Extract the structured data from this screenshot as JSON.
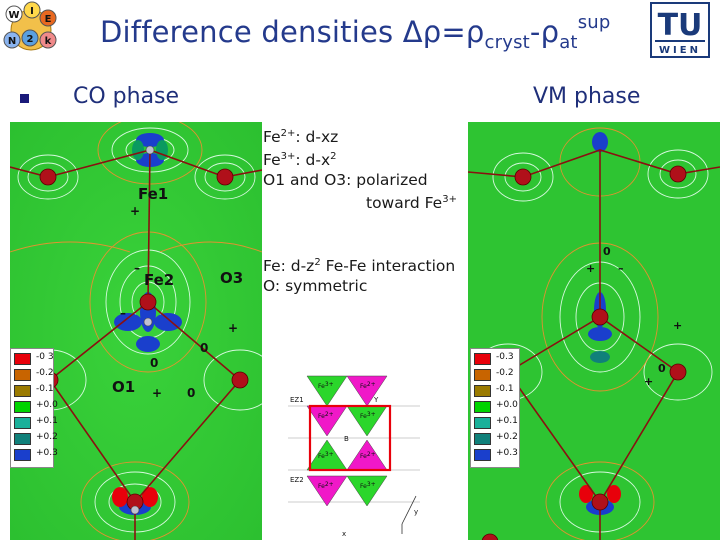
{
  "header": {
    "title_prefix": "Difference densities Δρ=ρ",
    "title_sub1": "cryst",
    "title_mid": "-ρ",
    "title_sub2": "at",
    "title_sup": "sup"
  },
  "logos": {
    "wien2k_letters": [
      "W",
      "I",
      "E",
      "N",
      "2",
      "k"
    ],
    "tu_wien_top": "TU",
    "tu_wien_bottom": "WIEN"
  },
  "sections": {
    "co_phase_label": "CO phase",
    "vm_phase_label": "VM phase"
  },
  "notes_block1": {
    "line1_fe": "Fe",
    "line1_sup": "2+",
    "line1_rest": ": d-xz",
    "line2_fe": "Fe",
    "line2_sup": "3+",
    "line2_rest": ": d-x",
    "line2_sup2": "2",
    "line3": "O1 and O3: polarized",
    "line4": "toward Fe",
    "line4_sup": "3+"
  },
  "notes_block2": {
    "line1_a": "Fe: d-z",
    "line1_sup": "2",
    "line1_b": " Fe-Fe interaction",
    "line2": "O: symmetric"
  },
  "co_map": {
    "site_labels": [
      "Fe1",
      "Fe2",
      "O3",
      "O1"
    ],
    "signs": [
      "+",
      "–",
      "–",
      "0",
      "0",
      "+",
      "0",
      "+"
    ]
  },
  "legend": {
    "colors": [
      "#e8000b",
      "#c86400",
      "#9a7a00",
      "#00d400",
      "#1ab09a",
      "#10807a",
      "#1a3fcc"
    ],
    "co_values": [
      "-0.3",
      "-0.2",
      "-0.1",
      "+0.0",
      "+0.1",
      "+0.2",
      "+0.3"
    ],
    "co_values_display": [
      "-0 3",
      "-0.2",
      "-0.1",
      "+0.0",
      "+0.1",
      "+0.2",
      "+0.3"
    ],
    "vm_values": [
      "-0.3",
      "-0.2",
      "-0.1",
      "+0.0",
      "+0.1",
      "+0.2",
      "+0.3"
    ]
  },
  "diagram": {
    "fe_label": "Fe",
    "fe_ox_top": "3+",
    "fe_ox_bottom": "2+",
    "axis_labels": [
      "EZ1",
      "EZ2",
      "B",
      "Y",
      "y",
      "x"
    ]
  },
  "vm_map": {
    "signs": [
      "0",
      "+",
      "–",
      "+",
      "0",
      "+"
    ]
  }
}
